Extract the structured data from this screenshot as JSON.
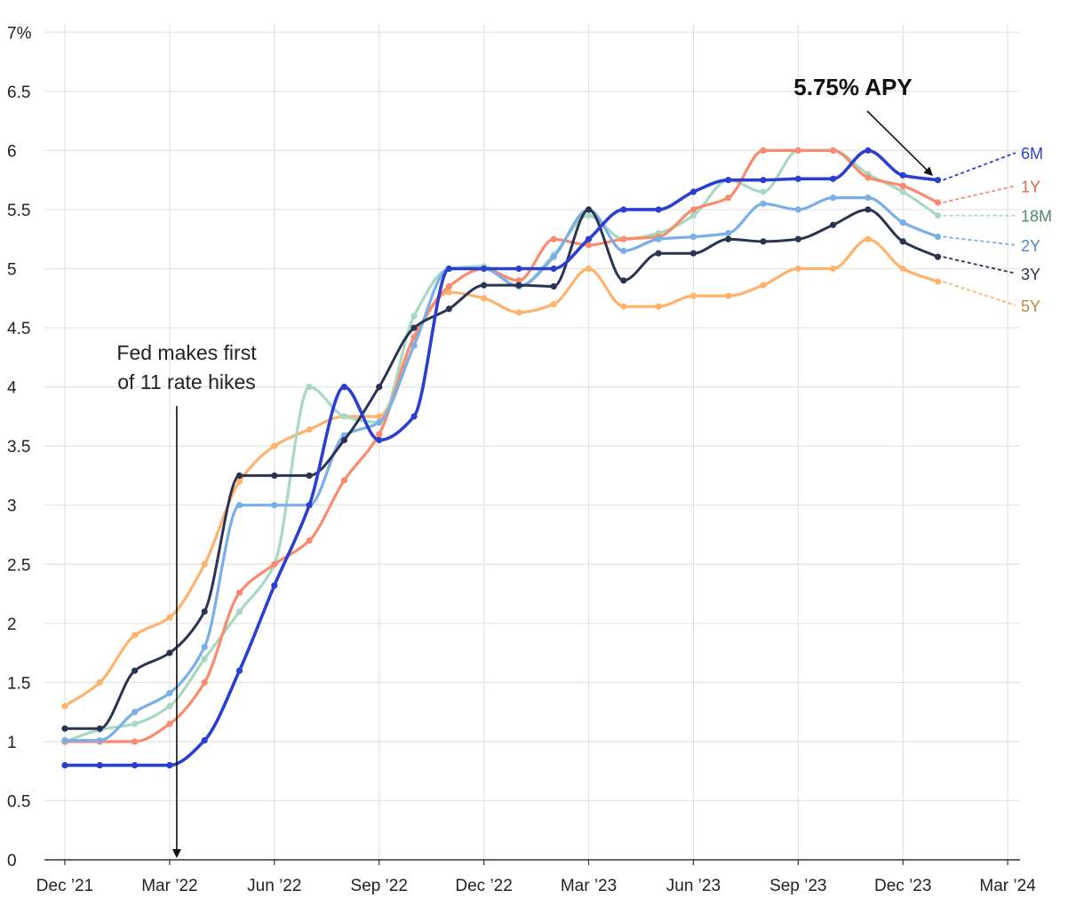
{
  "chart_data": {
    "type": "line",
    "y_unit_suffix": "%",
    "ylim": [
      0,
      7
    ],
    "y_ticks": [
      0,
      0.5,
      1,
      1.5,
      2,
      2.5,
      3,
      3.5,
      4,
      4.5,
      5,
      5.5,
      6,
      6.5,
      7
    ],
    "y_tick_labels": [
      "0",
      "0.5",
      "1",
      "1.5",
      "2",
      "2.5",
      "3",
      "3.5",
      "4",
      "4.5",
      "5",
      "5.5",
      "6",
      "6.5",
      "7%"
    ],
    "x_tick_labels": [
      "Dec ’21",
      "Mar ’22",
      "Jun ’22",
      "Sep ’22",
      "Dec ’22",
      "Mar ’23",
      "Jun ’23",
      "Sep ’23",
      "Dec ’23",
      "Mar ’24"
    ],
    "x_dates": [
      "2021-12",
      "2022-01",
      "2022-02",
      "2022-03",
      "2022-04",
      "2022-05",
      "2022-06",
      "2022-07",
      "2022-08",
      "2022-09",
      "2022-10",
      "2022-11",
      "2022-12",
      "2023-01",
      "2023-02",
      "2023-03",
      "2023-04",
      "2023-05",
      "2023-06",
      "2023-07",
      "2023-08",
      "2023-09",
      "2023-10",
      "2023-11",
      "2023-12",
      "2024-01"
    ],
    "grid": true,
    "series": [
      {
        "name": "5Y",
        "color": "#ffb26b",
        "label_color": "#c8833a",
        "values": [
          1.3,
          1.5,
          1.9,
          2.05,
          2.5,
          3.2,
          3.5,
          3.64,
          3.75,
          3.75,
          4.42,
          4.8,
          4.75,
          4.63,
          4.7,
          5.0,
          4.68,
          4.68,
          4.77,
          4.77,
          4.86,
          5.0,
          5.0,
          5.25,
          5.0,
          4.89
        ]
      },
      {
        "name": "18M",
        "color": "#a8d8c1",
        "label_color": "#4e8a6c",
        "values": [
          1.0,
          1.1,
          1.15,
          1.3,
          1.7,
          2.1,
          2.5,
          4.0,
          3.75,
          3.7,
          4.6,
          5.0,
          5.02,
          4.85,
          5.12,
          5.45,
          5.25,
          5.3,
          5.45,
          5.75,
          5.65,
          6.0,
          6.0,
          5.8,
          5.65,
          5.45
        ]
      },
      {
        "name": "1Y",
        "color": "#f98a6d",
        "label_color": "#e0663f",
        "values": [
          1.0,
          1.0,
          1.0,
          1.15,
          1.5,
          2.26,
          2.5,
          2.7,
          3.21,
          3.6,
          4.42,
          4.85,
          5.0,
          4.9,
          5.25,
          5.2,
          5.25,
          5.27,
          5.5,
          5.6,
          6.0,
          6.0,
          6.0,
          5.77,
          5.7,
          5.56
        ]
      },
      {
        "name": "2Y",
        "color": "#79aee6",
        "label_color": "#4a86c8",
        "values": [
          1.01,
          1.01,
          1.25,
          1.41,
          1.8,
          3.0,
          3.0,
          3.0,
          3.59,
          3.7,
          4.35,
          5.0,
          5.0,
          4.85,
          5.1,
          5.5,
          5.15,
          5.25,
          5.27,
          5.3,
          5.55,
          5.5,
          5.6,
          5.6,
          5.39,
          5.27
        ]
      },
      {
        "name": "3Y",
        "color": "#2a3452",
        "label_color": "#2a3452",
        "values": [
          1.11,
          1.11,
          1.6,
          1.75,
          2.1,
          3.25,
          3.25,
          3.25,
          3.55,
          4.0,
          4.5,
          4.66,
          4.86,
          4.86,
          4.85,
          5.5,
          4.9,
          5.13,
          5.13,
          5.25,
          5.23,
          5.25,
          5.37,
          5.5,
          5.23,
          5.1
        ]
      },
      {
        "name": "6M",
        "color": "#2b3fcf",
        "label_color": "#2b3fcf",
        "values": [
          0.8,
          0.8,
          0.8,
          0.8,
          1.01,
          1.6,
          2.32,
          3.0,
          4.0,
          3.55,
          3.75,
          5.0,
          5.0,
          5.0,
          5.0,
          5.25,
          5.5,
          5.5,
          5.65,
          5.75,
          5.75,
          5.76,
          5.76,
          6.0,
          5.79,
          5.75
        ]
      }
    ],
    "series_label_values": {
      "6M": 5.98,
      "1Y": 5.7,
      "18M": 5.45,
      "2Y": 5.2,
      "3Y": 4.96,
      "5Y": 4.69
    },
    "annotations": [
      {
        "text_lines": [
          "Fed makes first",
          "of 11 rate hikes"
        ],
        "x_date": "2022-03",
        "arrow": "down-to-axis"
      },
      {
        "text": "5.75% APY",
        "points_to_series": "6M",
        "points_to_date": "2024-01",
        "value": 5.75
      }
    ]
  }
}
